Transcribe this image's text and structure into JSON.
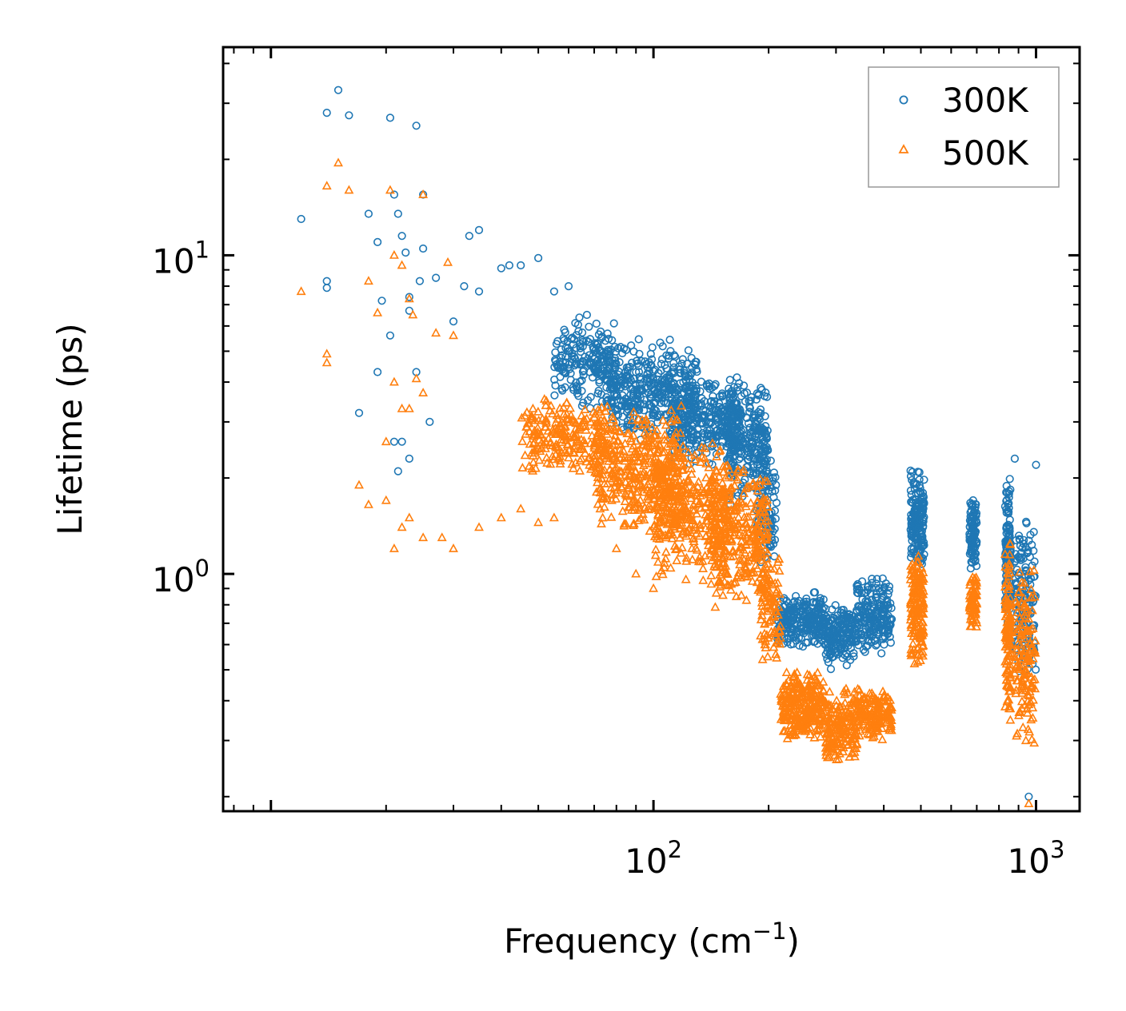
{
  "chart_data": {
    "type": "scatter",
    "x_scale": "log",
    "y_scale": "log",
    "xlabel": "Frequency (cm",
    "xlabel_sup": "−1",
    "xlabel_end": ")",
    "ylabel": "Lifetime (ps)",
    "xlim": [
      7.5,
      1300
    ],
    "ylim": [
      0.18,
      45
    ],
    "x_tick_labels": [
      {
        "value": 100,
        "base": "10",
        "exp": "2"
      },
      {
        "value": 1000,
        "base": "10",
        "exp": "3"
      }
    ],
    "y_tick_labels": [
      {
        "value": 1,
        "base": "10",
        "exp": "0"
      },
      {
        "value": 10,
        "base": "10",
        "exp": "1"
      }
    ],
    "legend_position": "top-right",
    "series": [
      {
        "name": "300K",
        "color": "#1f77b4",
        "marker": "circle",
        "bands": [
          {
            "x": [
              55,
              80
            ],
            "y": [
              3.2,
              6.5
            ],
            "n": 200
          },
          {
            "x": [
              75,
              130
            ],
            "y": [
              2.6,
              5.5
            ],
            "n": 380
          },
          {
            "x": [
              110,
              170
            ],
            "y": [
              2.2,
              4.3
            ],
            "n": 320
          },
          {
            "x": [
              155,
              200
            ],
            "y": [
              1.6,
              4.2
            ],
            "n": 260
          },
          {
            "x": [
              185,
              210
            ],
            "y": [
              1.0,
              2.6
            ],
            "n": 100
          },
          {
            "x": [
              210,
              280
            ],
            "y": [
              0.58,
              0.88
            ],
            "n": 240
          },
          {
            "x": [
              280,
              340
            ],
            "y": [
              0.5,
              0.82
            ],
            "n": 180
          },
          {
            "x": [
              340,
              420
            ],
            "y": [
              0.55,
              1.0
            ],
            "n": 200
          },
          {
            "x": [
              470,
              510
            ],
            "y": [
              1.0,
              2.2
            ],
            "n": 160
          },
          {
            "x": [
              670,
              700
            ],
            "y": [
              1.0,
              1.8
            ],
            "n": 90
          },
          {
            "x": [
              830,
              860
            ],
            "y": [
              0.7,
              2.1
            ],
            "n": 120
          },
          {
            "x": [
              880,
              1000
            ],
            "y": [
              0.45,
              1.6
            ],
            "n": 140
          }
        ],
        "points": [
          [
            12,
            13
          ],
          [
            14,
            28
          ],
          [
            15,
            33
          ],
          [
            16,
            27.5
          ],
          [
            18,
            13.5
          ],
          [
            19,
            11
          ],
          [
            19.5,
            7.2
          ],
          [
            14,
            8.3
          ],
          [
            14,
            7.9
          ],
          [
            20.5,
            27
          ],
          [
            21,
            15.5
          ],
          [
            21.5,
            13.5
          ],
          [
            22,
            11.5
          ],
          [
            22.5,
            10.2
          ],
          [
            23,
            7.4
          ],
          [
            24,
            25.5
          ],
          [
            25,
            15.5
          ],
          [
            25,
            10.5
          ],
          [
            24.5,
            8.3
          ],
          [
            20.5,
            5.6
          ],
          [
            23,
            6.7
          ],
          [
            19,
            4.3
          ],
          [
            17,
            3.2
          ],
          [
            21,
            2.6
          ],
          [
            22,
            2.6
          ],
          [
            23,
            2.3
          ],
          [
            21.5,
            2.1
          ],
          [
            24,
            4.3
          ],
          [
            26,
            3.0
          ],
          [
            27,
            8.5
          ],
          [
            30,
            6.2
          ],
          [
            32,
            8.0
          ],
          [
            33,
            11.5
          ],
          [
            35,
            12.0
          ],
          [
            35,
            7.7
          ],
          [
            40,
            9.1
          ],
          [
            42,
            9.3
          ],
          [
            45,
            9.3
          ],
          [
            50,
            9.8
          ],
          [
            55,
            7.7
          ],
          [
            60,
            8.0
          ],
          [
            67,
            6.5
          ],
          [
            957,
            0.2
          ],
          [
            1000,
            2.2
          ],
          [
            880,
            2.3
          ]
        ]
      },
      {
        "name": "500K",
        "color": "#ff7f0e",
        "marker": "triangle",
        "bands": [
          {
            "x": [
              45,
              75
            ],
            "y": [
              2.0,
              3.6
            ],
            "n": 220
          },
          {
            "x": [
              70,
              120
            ],
            "y": [
              1.3,
              3.4
            ],
            "n": 420
          },
          {
            "x": [
              100,
              160
            ],
            "y": [
              0.95,
              2.6
            ],
            "n": 360
          },
          {
            "x": [
              140,
              200
            ],
            "y": [
              0.75,
              2.3
            ],
            "n": 300
          },
          {
            "x": [
              190,
              215
            ],
            "y": [
              0.5,
              1.2
            ],
            "n": 100
          },
          {
            "x": [
              215,
              280
            ],
            "y": [
              0.3,
              0.5
            ],
            "n": 260
          },
          {
            "x": [
              280,
              340
            ],
            "y": [
              0.25,
              0.45
            ],
            "n": 180
          },
          {
            "x": [
              340,
              420
            ],
            "y": [
              0.3,
              0.45
            ],
            "n": 160
          },
          {
            "x": [
              470,
              510
            ],
            "y": [
              0.5,
              1.2
            ],
            "n": 160
          },
          {
            "x": [
              670,
              700
            ],
            "y": [
              0.65,
              1.0
            ],
            "n": 80
          },
          {
            "x": [
              830,
              860
            ],
            "y": [
              0.3,
              1.4
            ],
            "n": 120
          },
          {
            "x": [
              880,
              1000
            ],
            "y": [
              0.27,
              1.1
            ],
            "n": 140
          }
        ],
        "points": [
          [
            12,
            7.7
          ],
          [
            14,
            4.9
          ],
          [
            14,
            4.6
          ],
          [
            14,
            16.5
          ],
          [
            15,
            19.5
          ],
          [
            16,
            16
          ],
          [
            18,
            8.3
          ],
          [
            19,
            6.6
          ],
          [
            20,
            2.6
          ],
          [
            21,
            4.0
          ],
          [
            22,
            3.3
          ],
          [
            23,
            3.3
          ],
          [
            24,
            4.1
          ],
          [
            25,
            3.7
          ],
          [
            20.5,
            16
          ],
          [
            21,
            10
          ],
          [
            22,
            9.3
          ],
          [
            23,
            7.3
          ],
          [
            23.5,
            6.5
          ],
          [
            25,
            15.5
          ],
          [
            27,
            5.7
          ],
          [
            29,
            9.5
          ],
          [
            30,
            5.6
          ],
          [
            17,
            1.9
          ],
          [
            18,
            1.65
          ],
          [
            20,
            1.7
          ],
          [
            21,
            1.2
          ],
          [
            22,
            1.4
          ],
          [
            23,
            1.5
          ],
          [
            25,
            1.3
          ],
          [
            28,
            1.3
          ],
          [
            30,
            1.2
          ],
          [
            35,
            1.4
          ],
          [
            40,
            1.5
          ],
          [
            45,
            1.6
          ],
          [
            50,
            1.45
          ],
          [
            55,
            1.5
          ],
          [
            80,
            1.2
          ],
          [
            90,
            1.0
          ],
          [
            100,
            0.9
          ],
          [
            957,
            0.19
          ]
        ]
      }
    ]
  }
}
